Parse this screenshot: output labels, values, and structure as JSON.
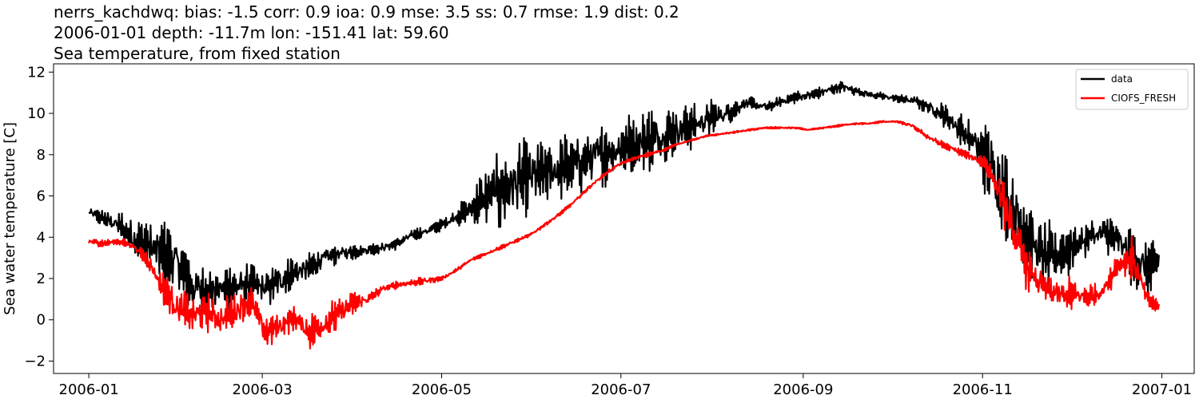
{
  "header": {
    "title_line1": "nerrs_kachdwq: bias: -1.5  corr: 0.9  ioa: 0.9  mse: 3.5  ss: 0.7  rmse: 1.9  dist: 0.2",
    "title_line2": "2006-01-01 depth: -11.7m lon: -151.41 lat: 59.60",
    "title_line3": "Sea temperature, from fixed station"
  },
  "chart_data": {
    "type": "line",
    "title": "Sea temperature, from fixed station",
    "xlabel": "",
    "ylabel": "Sea water temperature [C]",
    "xlim": [
      "2005-12-20",
      "2007-01-12"
    ],
    "ylim": [
      -2.6,
      12.4
    ],
    "x_ticks": [
      "2006-01",
      "2006-03",
      "2006-05",
      "2006-07",
      "2006-09",
      "2006-11",
      "2007-01"
    ],
    "y_ticks": [
      -2,
      0,
      2,
      4,
      6,
      8,
      10,
      12
    ],
    "grid": false,
    "legend_position": "top-right",
    "series": [
      {
        "name": "data",
        "color": "#000000",
        "x": [
          "2006-01-01",
          "2006-01-06",
          "2006-01-11",
          "2006-01-16",
          "2006-01-21",
          "2006-01-26",
          "2006-01-31",
          "2006-02-05",
          "2006-02-10",
          "2006-02-15",
          "2006-02-20",
          "2006-02-25",
          "2006-03-02",
          "2006-03-07",
          "2006-03-12",
          "2006-03-17",
          "2006-03-22",
          "2006-03-27",
          "2006-04-01",
          "2006-04-06",
          "2006-04-11",
          "2006-04-16",
          "2006-04-21",
          "2006-04-26",
          "2006-05-01",
          "2006-05-06",
          "2006-05-11",
          "2006-05-16",
          "2006-05-21",
          "2006-05-26",
          "2006-05-31",
          "2006-06-05",
          "2006-06-10",
          "2006-06-15",
          "2006-06-20",
          "2006-06-25",
          "2006-06-30",
          "2006-07-05",
          "2006-07-10",
          "2006-07-15",
          "2006-07-20",
          "2006-07-25",
          "2006-07-30",
          "2006-08-04",
          "2006-08-09",
          "2006-08-12",
          "2006-08-20",
          "2006-08-25",
          "2006-08-30",
          "2006-09-04",
          "2006-09-09",
          "2006-09-14",
          "2006-09-19",
          "2006-09-24",
          "2006-09-29",
          "2006-10-04",
          "2006-10-09",
          "2006-10-14",
          "2006-10-19",
          "2006-10-24",
          "2006-10-29",
          "2006-11-03",
          "2006-11-08",
          "2006-11-13",
          "2006-11-18",
          "2006-11-23",
          "2006-11-28",
          "2006-12-03",
          "2006-12-08",
          "2006-12-13",
          "2006-12-18",
          "2006-12-23",
          "2006-12-28",
          "2006-12-31"
        ],
        "values": [
          5.2,
          4.9,
          4.6,
          4.0,
          3.6,
          3.2,
          2.8,
          1.6,
          1.4,
          1.5,
          1.6,
          1.7,
          1.5,
          1.9,
          2.3,
          2.5,
          3.0,
          3.2,
          3.3,
          3.4,
          3.5,
          3.7,
          4.1,
          4.3,
          4.6,
          5.0,
          5.4,
          5.9,
          6.3,
          6.6,
          6.9,
          7.1,
          7.3,
          7.5,
          7.8,
          8.0,
          8.3,
          8.5,
          8.7,
          8.9,
          9.2,
          9.4,
          9.7,
          9.9,
          10.2,
          10.5,
          10.3,
          10.6,
          10.8,
          10.9,
          11.1,
          11.3,
          11.1,
          10.9,
          10.8,
          10.7,
          10.6,
          10.3,
          9.9,
          9.3,
          8.6,
          7.6,
          6.3,
          4.9,
          3.6,
          2.9,
          3.3,
          3.6,
          4.1,
          4.2,
          3.7,
          2.8,
          2.4,
          2.9
        ],
        "noise": [
          0.4,
          0.4,
          0.7,
          1.2,
          1.5,
          1.7,
          1.6,
          1.5,
          1.3,
          1.2,
          1.2,
          1.1,
          1.0,
          1.0,
          0.9,
          0.8,
          0.6,
          0.5,
          0.4,
          0.3,
          0.3,
          0.3,
          0.3,
          0.3,
          0.3,
          0.5,
          0.8,
          1.8,
          2.2,
          2.2,
          2.0,
          1.7,
          1.6,
          1.8,
          1.8,
          1.7,
          1.5,
          1.6,
          1.8,
          1.5,
          1.3,
          1.2,
          1.0,
          0.8,
          0.5,
          0.4,
          0.3,
          0.3,
          0.3,
          0.3,
          0.3,
          0.3,
          0.3,
          0.2,
          0.2,
          0.2,
          0.3,
          0.4,
          0.6,
          0.8,
          1.2,
          2.0,
          2.3,
          2.2,
          2.1,
          2.0,
          1.6,
          1.2,
          1.0,
          1.0,
          1.2,
          1.6,
          1.6,
          0.6
        ]
      },
      {
        "name": "CIOFS_FRESH",
        "color": "#ff0000",
        "x": [
          "2006-01-01",
          "2006-01-06",
          "2006-01-11",
          "2006-01-16",
          "2006-01-21",
          "2006-01-26",
          "2006-01-31",
          "2006-02-05",
          "2006-02-10",
          "2006-02-15",
          "2006-02-20",
          "2006-02-25",
          "2006-03-02",
          "2006-03-07",
          "2006-03-12",
          "2006-03-17",
          "2006-03-22",
          "2006-03-27",
          "2006-04-01",
          "2006-04-06",
          "2006-04-11",
          "2006-04-16",
          "2006-04-21",
          "2006-04-26",
          "2006-05-01",
          "2006-05-06",
          "2006-05-11",
          "2006-05-16",
          "2006-05-21",
          "2006-05-26",
          "2006-05-31",
          "2006-06-05",
          "2006-06-10",
          "2006-06-15",
          "2006-06-20",
          "2006-06-25",
          "2006-06-30",
          "2006-07-05",
          "2006-07-10",
          "2006-07-15",
          "2006-07-20",
          "2006-07-25",
          "2006-07-30",
          "2006-08-04",
          "2006-08-09",
          "2006-08-14",
          "2006-08-19",
          "2006-08-24",
          "2006-08-29",
          "2006-09-03",
          "2006-09-08",
          "2006-09-13",
          "2006-09-18",
          "2006-09-23",
          "2006-09-28",
          "2006-10-03",
          "2006-10-08",
          "2006-10-13",
          "2006-10-18",
          "2006-10-23",
          "2006-10-28",
          "2006-11-02",
          "2006-11-07",
          "2006-11-12",
          "2006-11-17",
          "2006-11-22",
          "2006-11-27",
          "2006-12-02",
          "2006-12-07",
          "2006-12-12",
          "2006-12-17",
          "2006-12-22",
          "2006-12-27",
          "2006-12-31"
        ],
        "values": [
          3.8,
          3.7,
          3.8,
          3.6,
          2.9,
          1.6,
          0.6,
          0.2,
          0.4,
          0.0,
          0.5,
          0.9,
          -0.6,
          -0.3,
          0.1,
          -0.6,
          -0.2,
          0.3,
          0.8,
          1.0,
          1.5,
          1.7,
          1.8,
          1.9,
          2.0,
          2.4,
          2.9,
          3.2,
          3.5,
          3.8,
          4.1,
          4.6,
          5.1,
          5.7,
          6.4,
          7.0,
          7.5,
          7.8,
          8.0,
          8.2,
          8.5,
          8.7,
          8.9,
          9.0,
          9.1,
          9.2,
          9.3,
          9.3,
          9.3,
          9.2,
          9.3,
          9.4,
          9.5,
          9.5,
          9.6,
          9.6,
          9.4,
          8.9,
          8.5,
          8.2,
          7.9,
          7.6,
          6.1,
          4.0,
          2.3,
          1.5,
          1.2,
          1.2,
          1.1,
          1.4,
          2.7,
          3.0,
          1.0,
          0.6
        ],
        "noise": [
          0.2,
          0.2,
          0.2,
          0.2,
          0.4,
          0.8,
          1.0,
          1.0,
          1.0,
          1.0,
          1.0,
          1.0,
          0.9,
          0.8,
          0.6,
          0.9,
          0.9,
          0.9,
          0.6,
          0.3,
          0.2,
          0.2,
          0.2,
          0.2,
          0.1,
          0.1,
          0.1,
          0.1,
          0.1,
          0.1,
          0.1,
          0.1,
          0.1,
          0.1,
          0.1,
          0.1,
          0.1,
          0.1,
          0.1,
          0.1,
          0.05,
          0.05,
          0.05,
          0.05,
          0.05,
          0.05,
          0.05,
          0.05,
          0.05,
          0.05,
          0.05,
          0.05,
          0.05,
          0.05,
          0.05,
          0.05,
          0.1,
          0.15,
          0.2,
          0.2,
          0.2,
          0.4,
          1.0,
          1.4,
          1.2,
          1.0,
          1.0,
          0.9,
          0.7,
          0.6,
          0.8,
          1.1,
          0.5,
          0.3
        ]
      }
    ]
  }
}
